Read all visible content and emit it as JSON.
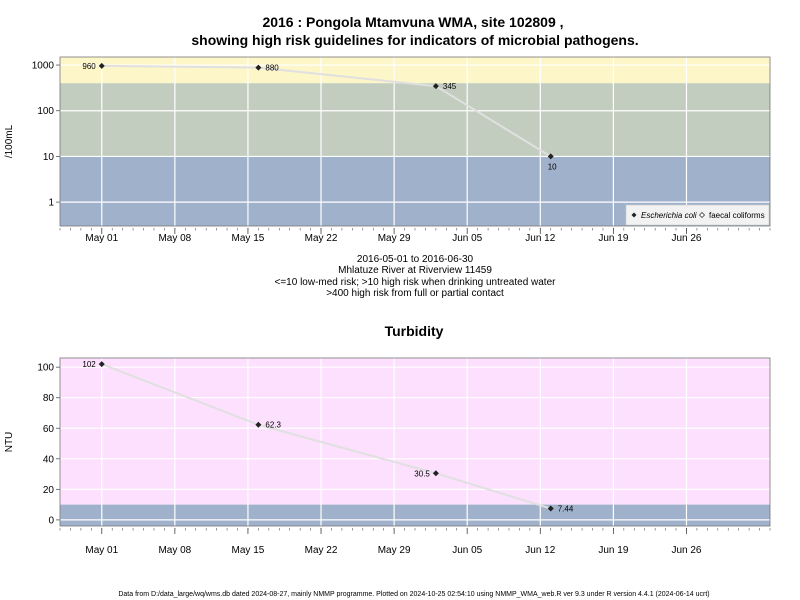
{
  "colors": {
    "band_high": "#fdf6c8",
    "band_mid": "#c3cdbf",
    "band_low": "#a0b1cb",
    "band_turb_high": "#fce0fd",
    "grid": "#ffffff",
    "line": "#e0e0e0",
    "marker": "#222222"
  },
  "figure": {
    "title_line1": "2016 : Pongola Mtamvuna WMA, site 102809 ,",
    "title_line2": "showing high risk guidelines for indicators of microbial pathogens.",
    "info_lines": [
      "2016-05-01 to 2016-06-30",
      "Mhlatuze River at Riverview 11459",
      "<=10 low-med risk; >10 high risk when drinking untreated water",
      ">400 high risk from full or partial contact"
    ],
    "footer": "Data from D:/data_large/wq/wms.db dated 2024-08-27, mainly NMMP programme. Plotted on 2024-10-25 02:54:10 using NMMP_WMA_web.R ver 9.3 under R version 4.4.1 (2024-06-14 ucrt)"
  },
  "chart_data": [
    {
      "type": "line",
      "title": "",
      "xlabel": "",
      "ylabel": "/100mL",
      "yscale": "log",
      "ylim": [
        0.3,
        1500
      ],
      "xlim": [
        "2016-04-27",
        "2016-07-04"
      ],
      "yticks": [
        {
          "value": 1,
          "label": "1"
        },
        {
          "value": 10,
          "label": "10"
        },
        {
          "value": 100,
          "label": "100"
        },
        {
          "value": 1000,
          "label": "1000"
        }
      ],
      "xticks": [
        {
          "date": "2016-05-01",
          "label": "May 01"
        },
        {
          "date": "2016-05-08",
          "label": "May 08"
        },
        {
          "date": "2016-05-15",
          "label": "May 15"
        },
        {
          "date": "2016-05-22",
          "label": "May 22"
        },
        {
          "date": "2016-05-29",
          "label": "May 29"
        },
        {
          "date": "2016-06-05",
          "label": "Jun 05"
        },
        {
          "date": "2016-06-12",
          "label": "Jun 12"
        },
        {
          "date": "2016-06-19",
          "label": "Jun 19"
        },
        {
          "date": "2016-06-26",
          "label": "Jun 26"
        }
      ],
      "bands": [
        {
          "from": 400,
          "to": 1500,
          "color": "#fdf6c8"
        },
        {
          "from": 10,
          "to": 400,
          "color": "#c3cdbf"
        },
        {
          "from": 0.3,
          "to": 10,
          "color": "#a0b1cb"
        }
      ],
      "series": [
        {
          "name": "Escherichia coli",
          "points": [
            {
              "date": "2016-05-01",
              "value": 960,
              "label": "960",
              "label_side": "left"
            },
            {
              "date": "2016-05-16",
              "value": 880,
              "label": "880",
              "label_side": "right"
            },
            {
              "date": "2016-06-02",
              "value": 345,
              "label": "345",
              "label_side": "right"
            },
            {
              "date": "2016-06-13",
              "value": 10,
              "label": "10",
              "label_side": "below"
            }
          ]
        }
      ],
      "legend": {
        "position": "bottom-right",
        "entries": [
          {
            "label": "Escherichia coli",
            "marker": "filled-diamond"
          },
          {
            "label": "faecal coliforms",
            "marker": "open-diamond"
          }
        ]
      }
    },
    {
      "type": "line",
      "title": "Turbidity",
      "xlabel": "",
      "ylabel": "NTU",
      "yscale": "linear",
      "ylim": [
        -4,
        106
      ],
      "xlim": [
        "2016-04-27",
        "2016-07-04"
      ],
      "yticks": [
        {
          "value": 0,
          "label": "0"
        },
        {
          "value": 20,
          "label": "20"
        },
        {
          "value": 40,
          "label": "40"
        },
        {
          "value": 60,
          "label": "60"
        },
        {
          "value": 80,
          "label": "80"
        },
        {
          "value": 100,
          "label": "100"
        }
      ],
      "xticks": [
        {
          "date": "2016-05-01",
          "label": "May 01"
        },
        {
          "date": "2016-05-08",
          "label": "May 08"
        },
        {
          "date": "2016-05-15",
          "label": "May 15"
        },
        {
          "date": "2016-05-22",
          "label": "May 22"
        },
        {
          "date": "2016-05-29",
          "label": "May 29"
        },
        {
          "date": "2016-06-05",
          "label": "Jun 05"
        },
        {
          "date": "2016-06-12",
          "label": "Jun 12"
        },
        {
          "date": "2016-06-19",
          "label": "Jun 19"
        },
        {
          "date": "2016-06-26",
          "label": "Jun 26"
        }
      ],
      "bands": [
        {
          "from": 10,
          "to": 106,
          "color": "#fce0fd"
        },
        {
          "from": -4,
          "to": 10,
          "color": "#a0b1cb"
        }
      ],
      "series": [
        {
          "name": "",
          "points": [
            {
              "date": "2016-05-01",
              "value": 102,
              "label": "102",
              "label_side": "left"
            },
            {
              "date": "2016-05-16",
              "value": 62.3,
              "label": "62.3",
              "label_side": "right"
            },
            {
              "date": "2016-06-02",
              "value": 30.5,
              "label": "30.5",
              "label_side": "left"
            },
            {
              "date": "2016-06-13",
              "value": 7.44,
              "label": "7.44",
              "label_side": "right"
            }
          ]
        }
      ],
      "legend": null
    }
  ]
}
